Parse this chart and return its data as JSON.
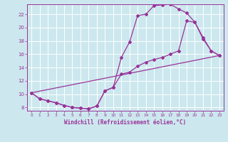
{
  "xlabel": "Windchill (Refroidissement éolien,°C)",
  "background_color": "#cce8ee",
  "grid_color": "#ffffff",
  "line_color": "#993399",
  "xlim": [
    -0.5,
    23.5
  ],
  "ylim": [
    7.5,
    23.5
  ],
  "xticks": [
    0,
    1,
    2,
    3,
    4,
    5,
    6,
    7,
    8,
    9,
    10,
    11,
    12,
    13,
    14,
    15,
    16,
    17,
    18,
    19,
    20,
    21,
    22,
    23
  ],
  "yticks": [
    8,
    10,
    12,
    14,
    16,
    18,
    20,
    22
  ],
  "curve1_x": [
    0,
    1,
    2,
    3,
    4,
    5,
    6,
    7,
    8,
    9,
    10,
    11,
    12,
    13,
    14,
    15,
    16,
    17,
    18,
    19,
    20,
    21,
    22,
    23
  ],
  "curve1_y": [
    10.2,
    9.3,
    9.0,
    8.7,
    8.3,
    8.0,
    7.9,
    7.8,
    8.2,
    10.5,
    11.0,
    15.5,
    17.8,
    21.8,
    22.0,
    23.3,
    23.4,
    23.5,
    22.8,
    22.2,
    20.8,
    18.3,
    16.5,
    15.8
  ],
  "curve2_x": [
    0,
    1,
    2,
    3,
    4,
    5,
    6,
    7,
    8,
    9,
    10,
    11,
    12,
    13,
    14,
    15,
    16,
    17,
    18,
    19,
    20,
    21,
    22,
    23
  ],
  "curve2_y": [
    10.2,
    9.3,
    9.0,
    8.7,
    8.3,
    8.0,
    7.9,
    7.8,
    8.2,
    10.5,
    11.0,
    13.0,
    13.3,
    14.2,
    14.8,
    15.2,
    15.5,
    16.0,
    16.5,
    21.0,
    20.8,
    18.5,
    16.5,
    15.8
  ],
  "curve3_x": [
    0,
    23
  ],
  "curve3_y": [
    10.2,
    15.8
  ]
}
